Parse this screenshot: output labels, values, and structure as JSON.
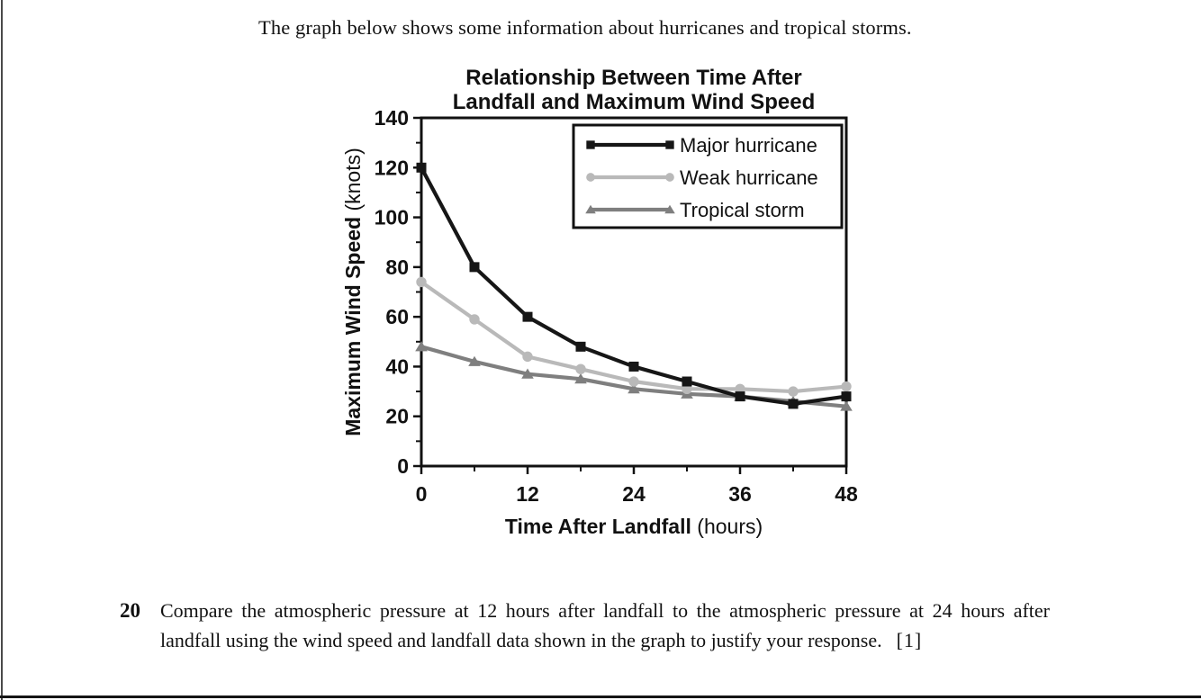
{
  "intro": {
    "text": "The graph below shows some information about hurricanes and tropical storms."
  },
  "chart_data": {
    "type": "line",
    "title_line1": "Relationship Between Time After",
    "title_line2": "Landfall and Maximum Wind Speed",
    "xlabel_bold": "Time After Landfall",
    "xlabel_unit": " (hours)",
    "ylabel_bold": "Maximum Wind Speed",
    "ylabel_unit": " (knots)",
    "xlim": [
      0,
      48
    ],
    "ylim": [
      0,
      140
    ],
    "x": [
      0,
      6,
      12,
      18,
      24,
      30,
      36,
      42,
      48
    ],
    "x_major_ticks": [
      0,
      12,
      24,
      36,
      48
    ],
    "x_minor_ticks": [
      6,
      18,
      30,
      42
    ],
    "y_major_ticks": [
      0,
      20,
      40,
      60,
      80,
      100,
      120,
      140
    ],
    "y_minor_ticks": [
      10,
      30,
      50,
      70,
      90,
      110,
      130
    ],
    "grid": false,
    "legend_position": "top-right-inside",
    "axis_color": "#111111",
    "series": [
      {
        "name": "Major hurricane",
        "marker": "square",
        "color": "#161616",
        "values": [
          120,
          80,
          60,
          48,
          40,
          34,
          28,
          25,
          28
        ]
      },
      {
        "name": "Weak hurricane",
        "marker": "circle",
        "color": "#b9b9b9",
        "values": [
          74,
          59,
          44,
          39,
          34,
          31,
          31,
          30,
          32
        ]
      },
      {
        "name": "Tropical storm",
        "marker": "triangle",
        "color": "#7f7f7f",
        "values": [
          48,
          42,
          37,
          35,
          31,
          29,
          28,
          26,
          24
        ]
      }
    ]
  },
  "question": {
    "number": "20",
    "text": "Compare the atmospheric pressure at 12 hours after landfall to the atmospheric pressure at 24 hours after landfall using the wind speed and landfall data shown in the graph to justify your response.",
    "marks": "[1]"
  }
}
